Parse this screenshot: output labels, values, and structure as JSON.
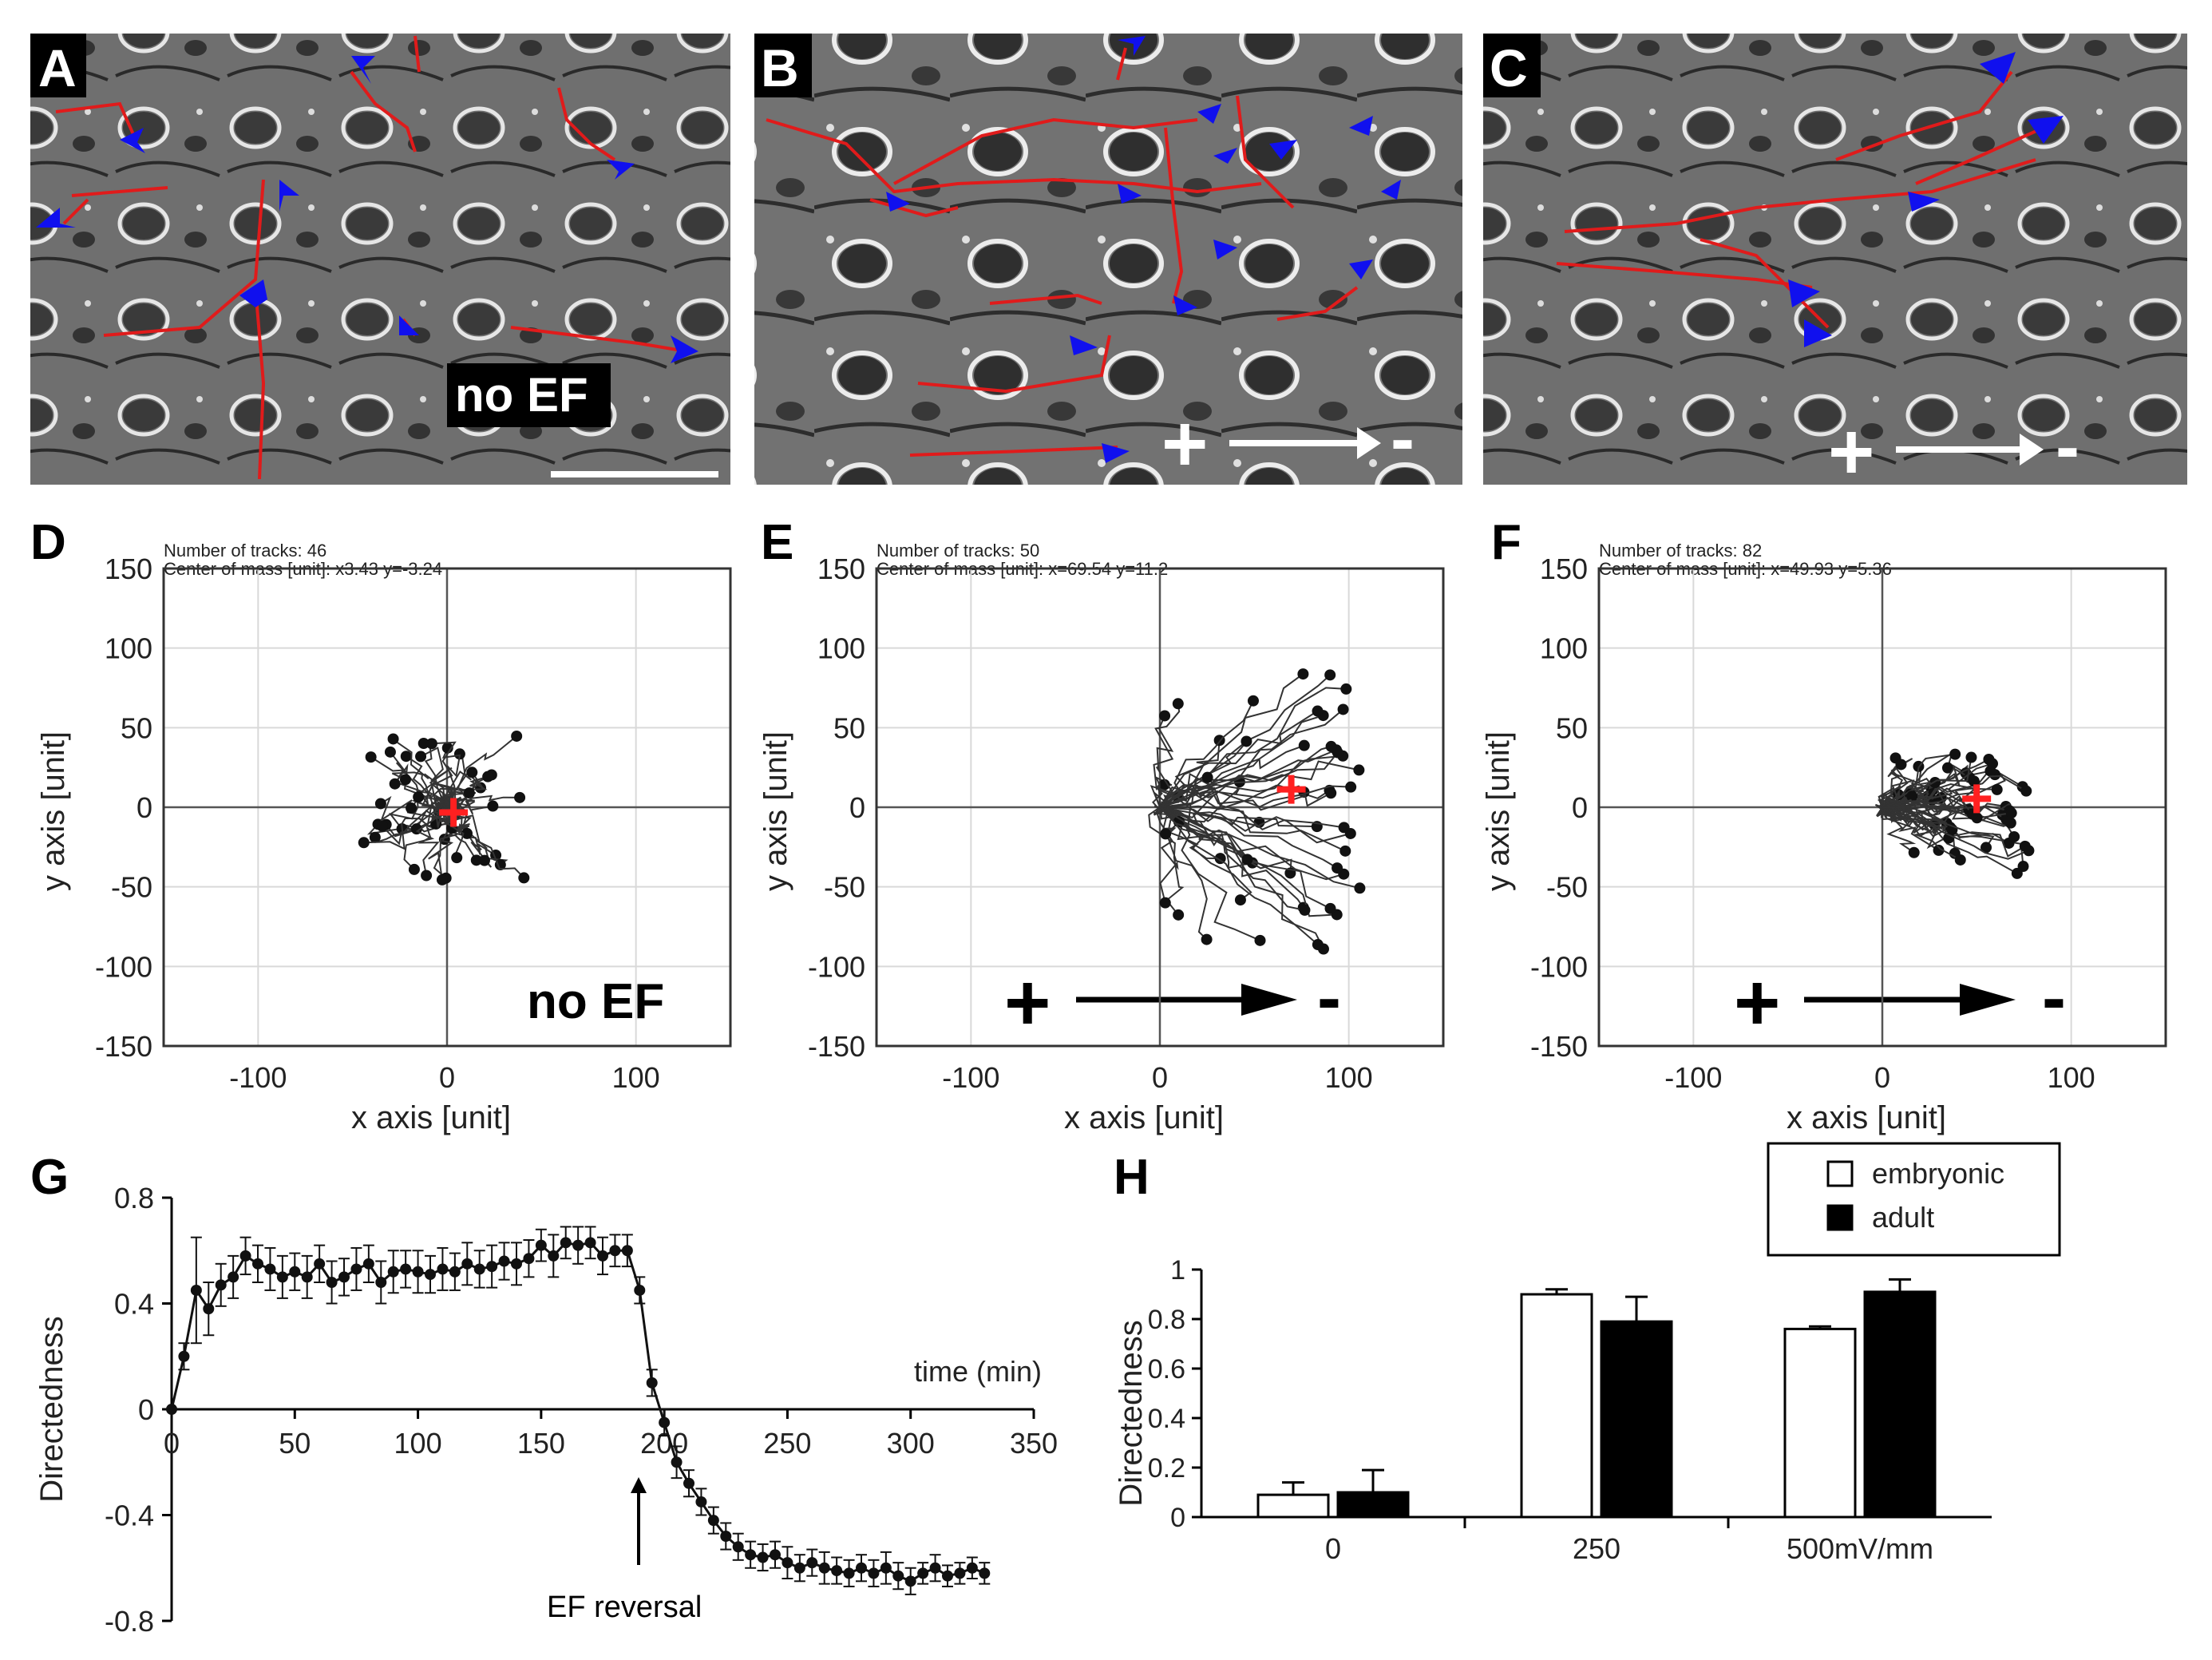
{
  "panels": {
    "A": {
      "letter": "A",
      "label": "no EF"
    },
    "B": {
      "letter": "B",
      "plus": "+",
      "minus": "-"
    },
    "C": {
      "letter": "C",
      "plus": "+",
      "minus": "-"
    },
    "D": {
      "letter": "D",
      "tracks_text": "Number of tracks: 46",
      "com_text": "Center of mass [unit]: x3.43 y=-3.24",
      "label": "no EF",
      "com": [
        3.43,
        -3.24
      ]
    },
    "E": {
      "letter": "E",
      "tracks_text": "Number of tracks: 50",
      "com_text": "Center of mass [unit]: x=69.54 y=11.2",
      "plus": "+",
      "minus": "-",
      "com": [
        69.54,
        11.2
      ]
    },
    "F": {
      "letter": "F",
      "tracks_text": "Number of tracks: 82",
      "com_text": "Center of mass [unit]: x=49.93 y=5.36",
      "plus": "+",
      "minus": "-",
      "com": [
        49.93,
        5.36
      ]
    },
    "G": {
      "letter": "G",
      "annotation": "EF reversal"
    },
    "H": {
      "letter": "H"
    }
  },
  "colors": {
    "track_red": "#e01b1b",
    "arrow_blue": "#1010ee",
    "com_red": "#ff2020",
    "micrograph_bg": "#6e6e6e"
  },
  "chart_data": [
    {
      "type": "scatter",
      "panel": "D",
      "xlabel": "x axis [unit]",
      "ylabel": "y axis [unit]",
      "xlim": [
        -150,
        150
      ],
      "ylim": [
        -150,
        150
      ],
      "xticks": [
        -100,
        0,
        100
      ],
      "yticks": [
        150,
        100,
        50,
        0,
        -50,
        -100,
        -150
      ],
      "grid": true,
      "n_tracks": 46,
      "center_of_mass": [
        3.43,
        -3.24
      ]
    },
    {
      "type": "scatter",
      "panel": "E",
      "xlabel": "x axis [unit]",
      "ylabel": "y axis [unit]",
      "xlim": [
        -150,
        150
      ],
      "ylim": [
        -150,
        150
      ],
      "xticks": [
        -100,
        0,
        100
      ],
      "yticks": [
        150,
        100,
        50,
        0,
        -50,
        -100,
        -150
      ],
      "grid": true,
      "n_tracks": 50,
      "center_of_mass": [
        69.54,
        11.2
      ]
    },
    {
      "type": "scatter",
      "panel": "F",
      "xlabel": "x axis [unit]",
      "ylabel": "y axis [unit]",
      "xlim": [
        -150,
        150
      ],
      "ylim": [
        -150,
        150
      ],
      "xticks": [
        -100,
        0,
        100
      ],
      "yticks": [
        150,
        100,
        50,
        0,
        -50,
        -100,
        -150
      ],
      "grid": true,
      "n_tracks": 82,
      "center_of_mass": [
        49.93,
        5.36
      ]
    },
    {
      "type": "line",
      "panel": "G",
      "xlabel": "time (min)",
      "ylabel": "Directedness",
      "xlim": [
        0,
        350
      ],
      "ylim": [
        -0.8,
        0.8
      ],
      "xticks": [
        0,
        50,
        100,
        150,
        200,
        250,
        300,
        350
      ],
      "yticks": [
        0.8,
        0.4,
        0,
        -0.4,
        -0.8
      ],
      "x": [
        0,
        5,
        10,
        15,
        20,
        25,
        30,
        35,
        40,
        45,
        50,
        55,
        60,
        65,
        70,
        75,
        80,
        85,
        90,
        95,
        100,
        105,
        110,
        115,
        120,
        125,
        130,
        135,
        140,
        145,
        150,
        155,
        160,
        165,
        170,
        175,
        180,
        185,
        190,
        195,
        200,
        205,
        210,
        215,
        220,
        225,
        230,
        235,
        240,
        245,
        250,
        255,
        260,
        265,
        270,
        275,
        280,
        285,
        290,
        295,
        300,
        305,
        310,
        315,
        320,
        325,
        330
      ],
      "y": [
        0,
        0.2,
        0.45,
        0.38,
        0.47,
        0.5,
        0.58,
        0.55,
        0.53,
        0.5,
        0.52,
        0.5,
        0.55,
        0.48,
        0.5,
        0.53,
        0.55,
        0.48,
        0.52,
        0.53,
        0.52,
        0.51,
        0.53,
        0.52,
        0.55,
        0.53,
        0.54,
        0.56,
        0.55,
        0.57,
        0.62,
        0.58,
        0.63,
        0.62,
        0.63,
        0.58,
        0.6,
        0.6,
        0.45,
        0.1,
        -0.05,
        -0.2,
        -0.28,
        -0.35,
        -0.42,
        -0.48,
        -0.52,
        -0.55,
        -0.56,
        -0.55,
        -0.58,
        -0.6,
        -0.58,
        -0.6,
        -0.61,
        -0.62,
        -0.6,
        -0.62,
        -0.6,
        -0.63,
        -0.65,
        -0.62,
        -0.6,
        -0.63,
        -0.62,
        -0.6,
        -0.62
      ],
      "err": [
        0,
        0.05,
        0.2,
        0.1,
        0.08,
        0.08,
        0.07,
        0.07,
        0.08,
        0.08,
        0.07,
        0.08,
        0.07,
        0.08,
        0.07,
        0.08,
        0.07,
        0.08,
        0.08,
        0.07,
        0.08,
        0.07,
        0.08,
        0.07,
        0.08,
        0.07,
        0.08,
        0.07,
        0.08,
        0.07,
        0.06,
        0.08,
        0.06,
        0.07,
        0.06,
        0.07,
        0.06,
        0.06,
        0.05,
        0.05,
        0.05,
        0.06,
        0.05,
        0.05,
        0.05,
        0.05,
        0.05,
        0.05,
        0.05,
        0.05,
        0.06,
        0.05,
        0.05,
        0.06,
        0.05,
        0.05,
        0.05,
        0.05,
        0.06,
        0.05,
        0.05,
        0.04,
        0.05,
        0.04,
        0.04,
        0.04,
        0.04
      ]
    },
    {
      "type": "bar",
      "panel": "H",
      "ylabel": "Directedness",
      "categories": [
        "0",
        "250",
        "500mV/mm"
      ],
      "ylim": [
        0,
        1
      ],
      "yticks": [
        0,
        0.2,
        0.4,
        0.6,
        0.8,
        1
      ],
      "series": [
        {
          "name": "embryonic",
          "values": [
            0.09,
            0.9,
            0.76
          ],
          "err": [
            0.05,
            0.02,
            0.01
          ]
        },
        {
          "name": "adult",
          "values": [
            0.1,
            0.79,
            0.91
          ],
          "err": [
            0.09,
            0.1,
            0.05
          ]
        }
      ]
    }
  ]
}
